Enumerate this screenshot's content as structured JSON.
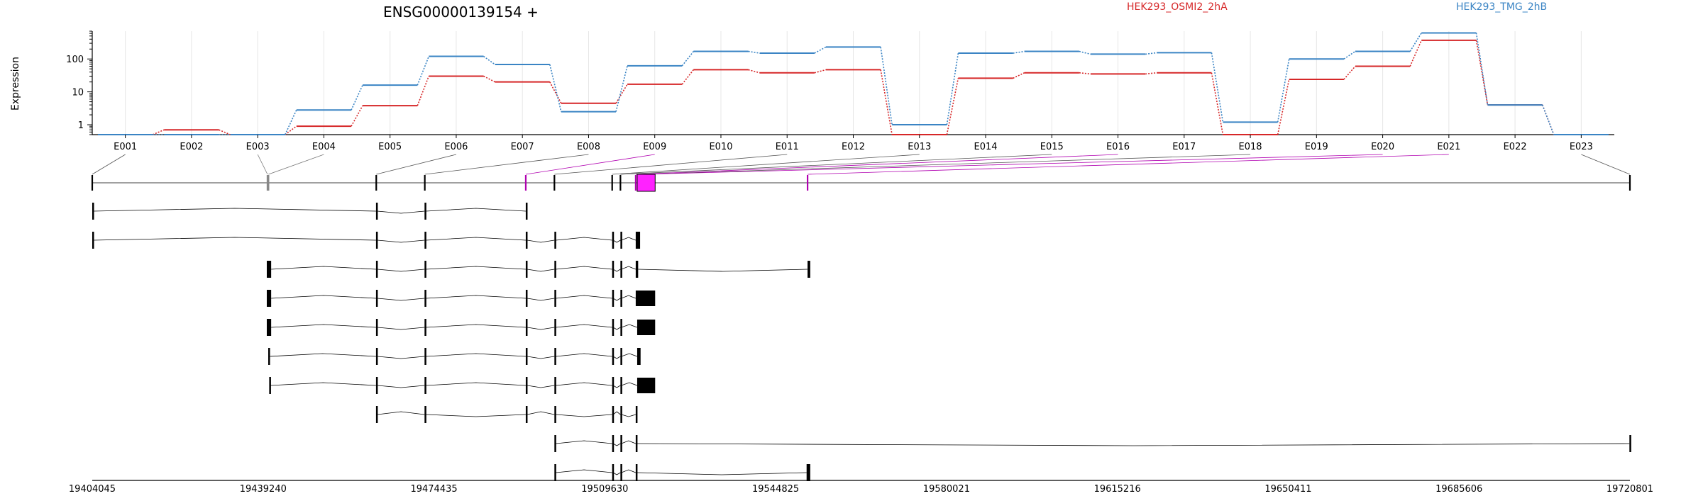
{
  "chart_data": {
    "type": "line",
    "title": "ENSG00000139154 +",
    "ylabel": "Expression",
    "yscale": "log",
    "ylim": [
      0.5,
      700
    ],
    "yticks": [
      1,
      10,
      100
    ],
    "grid": true,
    "legend_position": "top-right",
    "categories": [
      "E001",
      "E002",
      "E003",
      "E004",
      "E005",
      "E006",
      "E007",
      "E008",
      "E009",
      "E010",
      "E011",
      "E012",
      "E013",
      "E014",
      "E015",
      "E016",
      "E017",
      "E018",
      "E019",
      "E020",
      "E021",
      "E022",
      "E023"
    ],
    "series": [
      {
        "name": "HEK293_OSMI2_2hA",
        "color": "#d62728",
        "values": [
          0.5,
          0.7,
          0.5,
          0.9,
          3.8,
          30,
          20,
          4.5,
          17,
          47,
          38,
          47,
          0.5,
          26,
          38,
          35,
          38,
          0.5,
          24,
          60,
          370,
          4,
          0.5
        ]
      },
      {
        "name": "HEK293_TMG_2hB",
        "color": "#3a84c4",
        "values": [
          0.5,
          0.5,
          0.5,
          2.8,
          16,
          120,
          68,
          2.5,
          62,
          170,
          150,
          230,
          1.0,
          150,
          170,
          140,
          155,
          1.2,
          100,
          170,
          620,
          4,
          0.5
        ]
      }
    ],
    "genomic_axis": {
      "ticks": [
        "19404045",
        "19439240",
        "19474435",
        "19509630",
        "19544825",
        "19580021",
        "19615216",
        "19650411",
        "19685606",
        "19720801"
      ],
      "range": [
        19404045,
        19720801
      ]
    },
    "exon_coords": [
      [
        19404045,
        19404120
      ],
      [
        19440140,
        19440300
      ],
      [
        19440350,
        19440900
      ],
      [
        19462550,
        19462800
      ],
      [
        19472550,
        19472800
      ],
      [
        19493350,
        19493800
      ],
      [
        19499250,
        19499550
      ],
      [
        19511150,
        19511350
      ],
      [
        19512850,
        19513050
      ],
      [
        19516000,
        19516900
      ],
      [
        19516950,
        19517300
      ],
      [
        19517350,
        19521000
      ],
      [
        19551400,
        19551950
      ],
      [
        19720801,
        19720880
      ]
    ],
    "exon_colors": [
      "none",
      "gray",
      "gray",
      "none",
      "none",
      "purple",
      "none",
      "none",
      "none",
      "purple",
      "none",
      "purple",
      "purple",
      "none"
    ],
    "transcripts": [
      {
        "exons": [
          [
            19404045,
            19404250
          ],
          [
            19462500,
            19462800
          ],
          [
            19472500,
            19472800
          ],
          [
            19493350,
            19493650
          ]
        ]
      },
      {
        "exons": [
          [
            19404045,
            19404250
          ],
          [
            19462500,
            19462800
          ],
          [
            19472500,
            19472800
          ],
          [
            19493350,
            19493650
          ],
          [
            19499250,
            19499550
          ],
          [
            19511150,
            19511350
          ],
          [
            19512850,
            19513050
          ],
          [
            19516000,
            19516900
          ]
        ]
      },
      {
        "exons": [
          [
            19440000,
            19440900
          ],
          [
            19462500,
            19462800
          ],
          [
            19472500,
            19472800
          ],
          [
            19493350,
            19493650
          ],
          [
            19499250,
            19499550
          ],
          [
            19511150,
            19511350
          ],
          [
            19512850,
            19513050
          ],
          [
            19516000,
            19516500
          ],
          [
            19551400,
            19551950
          ]
        ]
      },
      {
        "exons": [
          [
            19440000,
            19440900
          ],
          [
            19462500,
            19462800
          ],
          [
            19472500,
            19472800
          ],
          [
            19493350,
            19493650
          ],
          [
            19499250,
            19499550
          ],
          [
            19511150,
            19511350
          ],
          [
            19512850,
            19513050
          ],
          [
            19516000,
            19520000
          ]
        ]
      },
      {
        "exons": [
          [
            19440000,
            19440900
          ],
          [
            19462500,
            19462800
          ],
          [
            19472500,
            19472800
          ],
          [
            19493350,
            19493650
          ],
          [
            19499250,
            19499550
          ],
          [
            19511150,
            19511350
          ],
          [
            19512850,
            19513050
          ],
          [
            19516300,
            19520000
          ]
        ]
      },
      {
        "exons": [
          [
            19440300,
            19440500
          ],
          [
            19462500,
            19462800
          ],
          [
            19472500,
            19472800
          ],
          [
            19493350,
            19493650
          ],
          [
            19499250,
            19499550
          ],
          [
            19511150,
            19511350
          ],
          [
            19512850,
            19513050
          ],
          [
            19516300,
            19517000
          ]
        ]
      },
      {
        "exons": [
          [
            19440500,
            19440700
          ],
          [
            19462500,
            19462800
          ],
          [
            19472500,
            19472800
          ],
          [
            19493350,
            19493650
          ],
          [
            19499250,
            19499550
          ],
          [
            19511150,
            19511350
          ],
          [
            19512850,
            19513050
          ],
          [
            19516300,
            19520000
          ]
        ]
      },
      {
        "exons": [
          [
            19462500,
            19462800
          ],
          [
            19472500,
            19472800
          ],
          [
            19493350,
            19493650
          ],
          [
            19499250,
            19499550
          ],
          [
            19511150,
            19511350
          ],
          [
            19512850,
            19513050
          ],
          [
            19516000,
            19516300
          ]
        ]
      },
      {
        "exons": [
          [
            19499250,
            19499550
          ],
          [
            19511150,
            19511350
          ],
          [
            19512850,
            19513050
          ],
          [
            19516000,
            19516300
          ],
          [
            19720700,
            19720801
          ]
        ]
      },
      {
        "exons": [
          [
            19499250,
            19499550
          ],
          [
            19511150,
            19511350
          ],
          [
            19512850,
            19513050
          ],
          [
            19516000,
            19516300
          ],
          [
            19551200,
            19551950
          ]
        ]
      }
    ],
    "highlight_exon": [
      19516300,
      19520000
    ]
  }
}
